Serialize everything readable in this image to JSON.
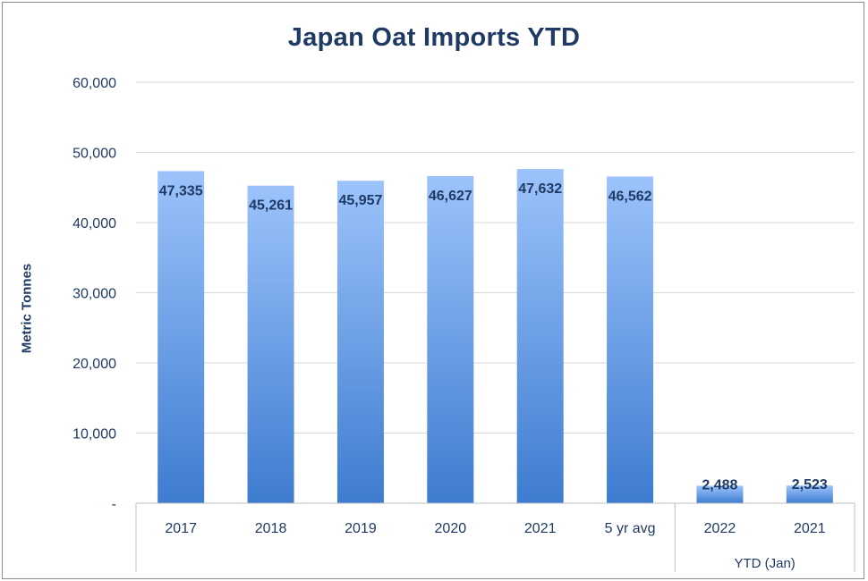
{
  "chart_data": {
    "type": "bar",
    "title": "Japan Oat Imports YTD",
    "ylabel": "Metric Tonnes",
    "xlabel": "",
    "ylim": [
      0,
      60000
    ],
    "yticks": [
      0,
      10000,
      20000,
      30000,
      40000,
      50000,
      60000
    ],
    "yticklabels": [
      "-",
      "10,000",
      "20,000",
      "30,000",
      "40,000",
      "50,000",
      "60,000"
    ],
    "categories": [
      "2017",
      "2018",
      "2019",
      "2020",
      "2021",
      "5 yr avg",
      "2022",
      "2021"
    ],
    "values": [
      47335,
      45261,
      45957,
      46627,
      47632,
      46562,
      2488,
      2523
    ],
    "value_labels": [
      "47,335",
      "45,261",
      "45,957",
      "46,627",
      "47,632",
      "46,562",
      "2,488",
      "2,523"
    ],
    "groups": [
      {
        "label": "",
        "categories": [
          "2017",
          "2018",
          "2019",
          "2020",
          "2021",
          "5 yr avg"
        ]
      },
      {
        "label": "YTD (Jan)",
        "categories": [
          "2022",
          "2021"
        ]
      }
    ],
    "grid": true,
    "legend": "none",
    "colors": {
      "bar_top": "#9cc3fb",
      "bar_bottom": "#3e7cd0",
      "grid": "#d9d9d9",
      "text": "#1f3a64"
    }
  }
}
